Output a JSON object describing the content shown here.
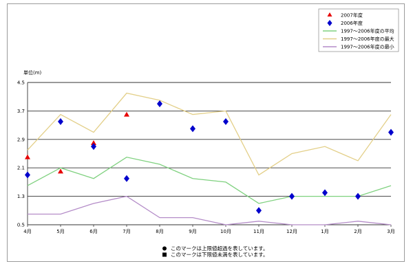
{
  "chart_data": {
    "type": "line",
    "ylabel": "単位(m)",
    "categories": [
      "4月",
      "5月",
      "6月",
      "7月",
      "8月",
      "9月",
      "10月",
      "11月",
      "12月",
      "1月",
      "2月",
      "3月"
    ],
    "yticks": [
      "4.5",
      "3.7",
      "2.9",
      "2.1",
      "1.3",
      "0.5"
    ],
    "ylim": [
      0.5,
      4.5
    ],
    "grid": true,
    "legend_position": "top-right",
    "series": [
      {
        "name": "1997～2006年度の平均",
        "kind": "line",
        "color": "#7fd17f",
        "values": [
          1.6,
          2.1,
          1.8,
          2.4,
          2.2,
          1.8,
          1.7,
          1.1,
          1.3,
          1.3,
          1.3,
          1.6
        ]
      },
      {
        "name": "1997～2006年度の最大",
        "kind": "line",
        "color": "#e3cf88",
        "values": [
          2.6,
          3.6,
          3.1,
          4.2,
          4.0,
          3.6,
          3.7,
          1.9,
          2.5,
          2.7,
          2.3,
          3.6
        ]
      },
      {
        "name": "1997～2006年度の最小",
        "kind": "line",
        "color": "#b48cc8",
        "values": [
          0.8,
          0.8,
          1.1,
          1.3,
          0.7,
          0.7,
          0.5,
          0.6,
          0.5,
          0.5,
          0.6,
          0.5
        ]
      },
      {
        "name": "2007年度",
        "kind": "triangle",
        "color": "#e60000",
        "values": [
          2.4,
          2.0,
          2.8,
          3.6,
          null,
          null,
          null,
          null,
          null,
          null,
          null,
          null
        ]
      },
      {
        "name": "2006年度",
        "kind": "diamond",
        "color": "#0000cc",
        "values": [
          1.9,
          3.4,
          2.7,
          1.8,
          3.9,
          3.2,
          3.4,
          0.9,
          1.3,
          1.4,
          1.3,
          3.1
        ]
      }
    ],
    "footnotes": [
      {
        "icon": "circle",
        "text": "このマークは上限値超過を表しています。"
      },
      {
        "icon": "square",
        "text": "このマークは下限値未満を表しています。"
      }
    ]
  }
}
